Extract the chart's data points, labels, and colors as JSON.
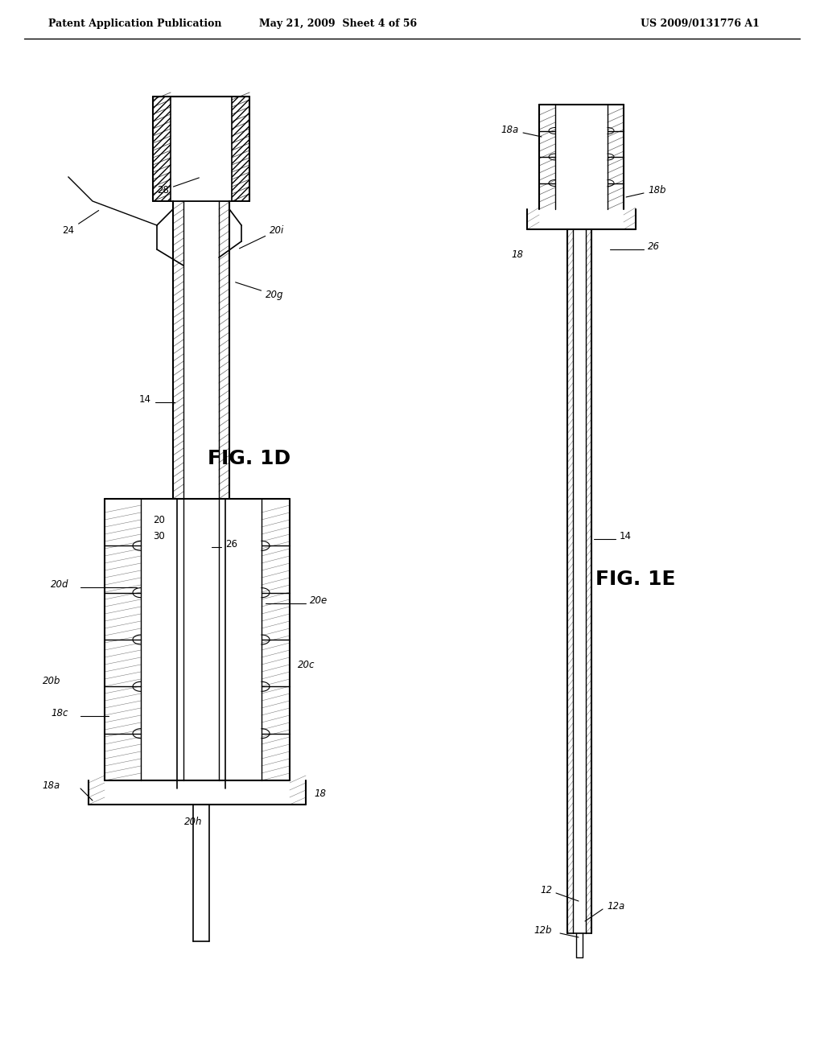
{
  "header_left": "Patent Application Publication",
  "header_mid": "May 21, 2009  Sheet 4 of 56",
  "header_right": "US 2009/0131776 A1",
  "fig1d_label": "FIG. 1D",
  "fig1e_label": "FIG. 1E",
  "bg_color": "#ffffff",
  "line_color": "#000000",
  "hatch_color": "#000000",
  "labels_1d": [
    "28",
    "20i",
    "20g",
    "24",
    "14",
    "20",
    "30",
    "26",
    "20d",
    "20e",
    "20c",
    "20c",
    "18c",
    "18a",
    "18",
    "20h",
    "20b"
  ],
  "labels_1e": [
    "18a",
    "18b",
    "26",
    "18",
    "14",
    "12",
    "12a",
    "12b"
  ]
}
